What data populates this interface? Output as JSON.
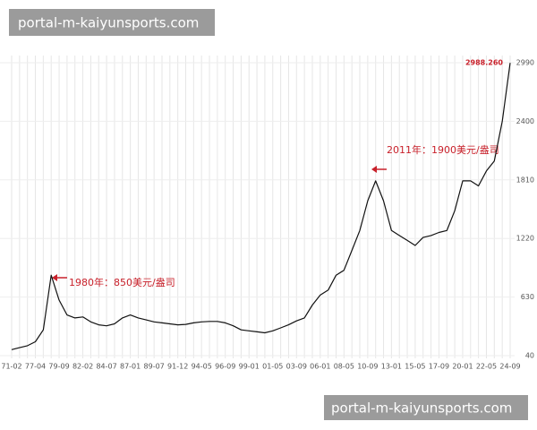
{
  "watermarks": [
    "portal-m-kaiyunsports.com",
    "portal-m-kaiyunsports.com"
  ],
  "chart_data": {
    "type": "line",
    "annotations": [
      "1980年：850美元/盎司",
      "2011年：1900美元/盎司"
    ],
    "categories": [
      "71-02",
      null,
      null,
      "77-04",
      null,
      null,
      "79-09",
      null,
      null,
      "82-02",
      null,
      null,
      "84-07",
      null,
      null,
      "87-01",
      null,
      null,
      "89-07",
      null,
      null,
      "91-12",
      null,
      null,
      "94-05",
      null,
      null,
      "96-09",
      null,
      null,
      "99-01",
      null,
      null,
      "01-05",
      null,
      null,
      "03-09",
      null,
      null,
      "06-01",
      null,
      null,
      "08-05",
      null,
      null,
      "10-09",
      null,
      null,
      "13-01",
      null,
      null,
      "15-05",
      null,
      null,
      "17-09",
      null,
      null,
      "20-01",
      null,
      null,
      "22-05",
      null,
      null,
      "24-09"
    ],
    "values": [
      100,
      120,
      140,
      180,
      300,
      850,
      600,
      450,
      420,
      430,
      380,
      350,
      340,
      360,
      420,
      450,
      420,
      400,
      380,
      370,
      360,
      350,
      355,
      370,
      380,
      385,
      385,
      370,
      340,
      300,
      290,
      280,
      270,
      290,
      320,
      350,
      390,
      420,
      550,
      650,
      700,
      850,
      900,
      1100,
      1300,
      1600,
      1800,
      1600,
      1300,
      1250,
      1200,
      1150,
      1230,
      1250,
      1280,
      1300,
      1500,
      1800,
      1800,
      1750,
      1900,
      2000,
      2400,
      2988.26
    ],
    "value_labels": [
      null,
      null,
      null,
      null,
      null,
      null,
      null,
      null,
      null,
      null,
      null,
      null,
      null,
      null,
      null,
      null,
      null,
      null,
      null,
      null,
      null,
      null,
      null,
      null,
      null,
      null,
      null,
      null,
      null,
      null,
      null,
      null,
      null,
      null,
      null,
      null,
      null,
      null,
      null,
      null,
      null,
      null,
      null,
      null,
      null,
      null,
      null,
      null,
      null,
      null,
      null,
      null,
      null,
      null,
      null,
      null,
      null,
      null,
      null,
      null,
      null,
      null,
      null,
      "2988.260"
    ],
    "color": "#111111",
    "ylim": [
      40,
      2990
    ],
    "yticks": [
      40,
      630,
      1220,
      1810,
      2400,
      2990
    ],
    "grid": true
  }
}
